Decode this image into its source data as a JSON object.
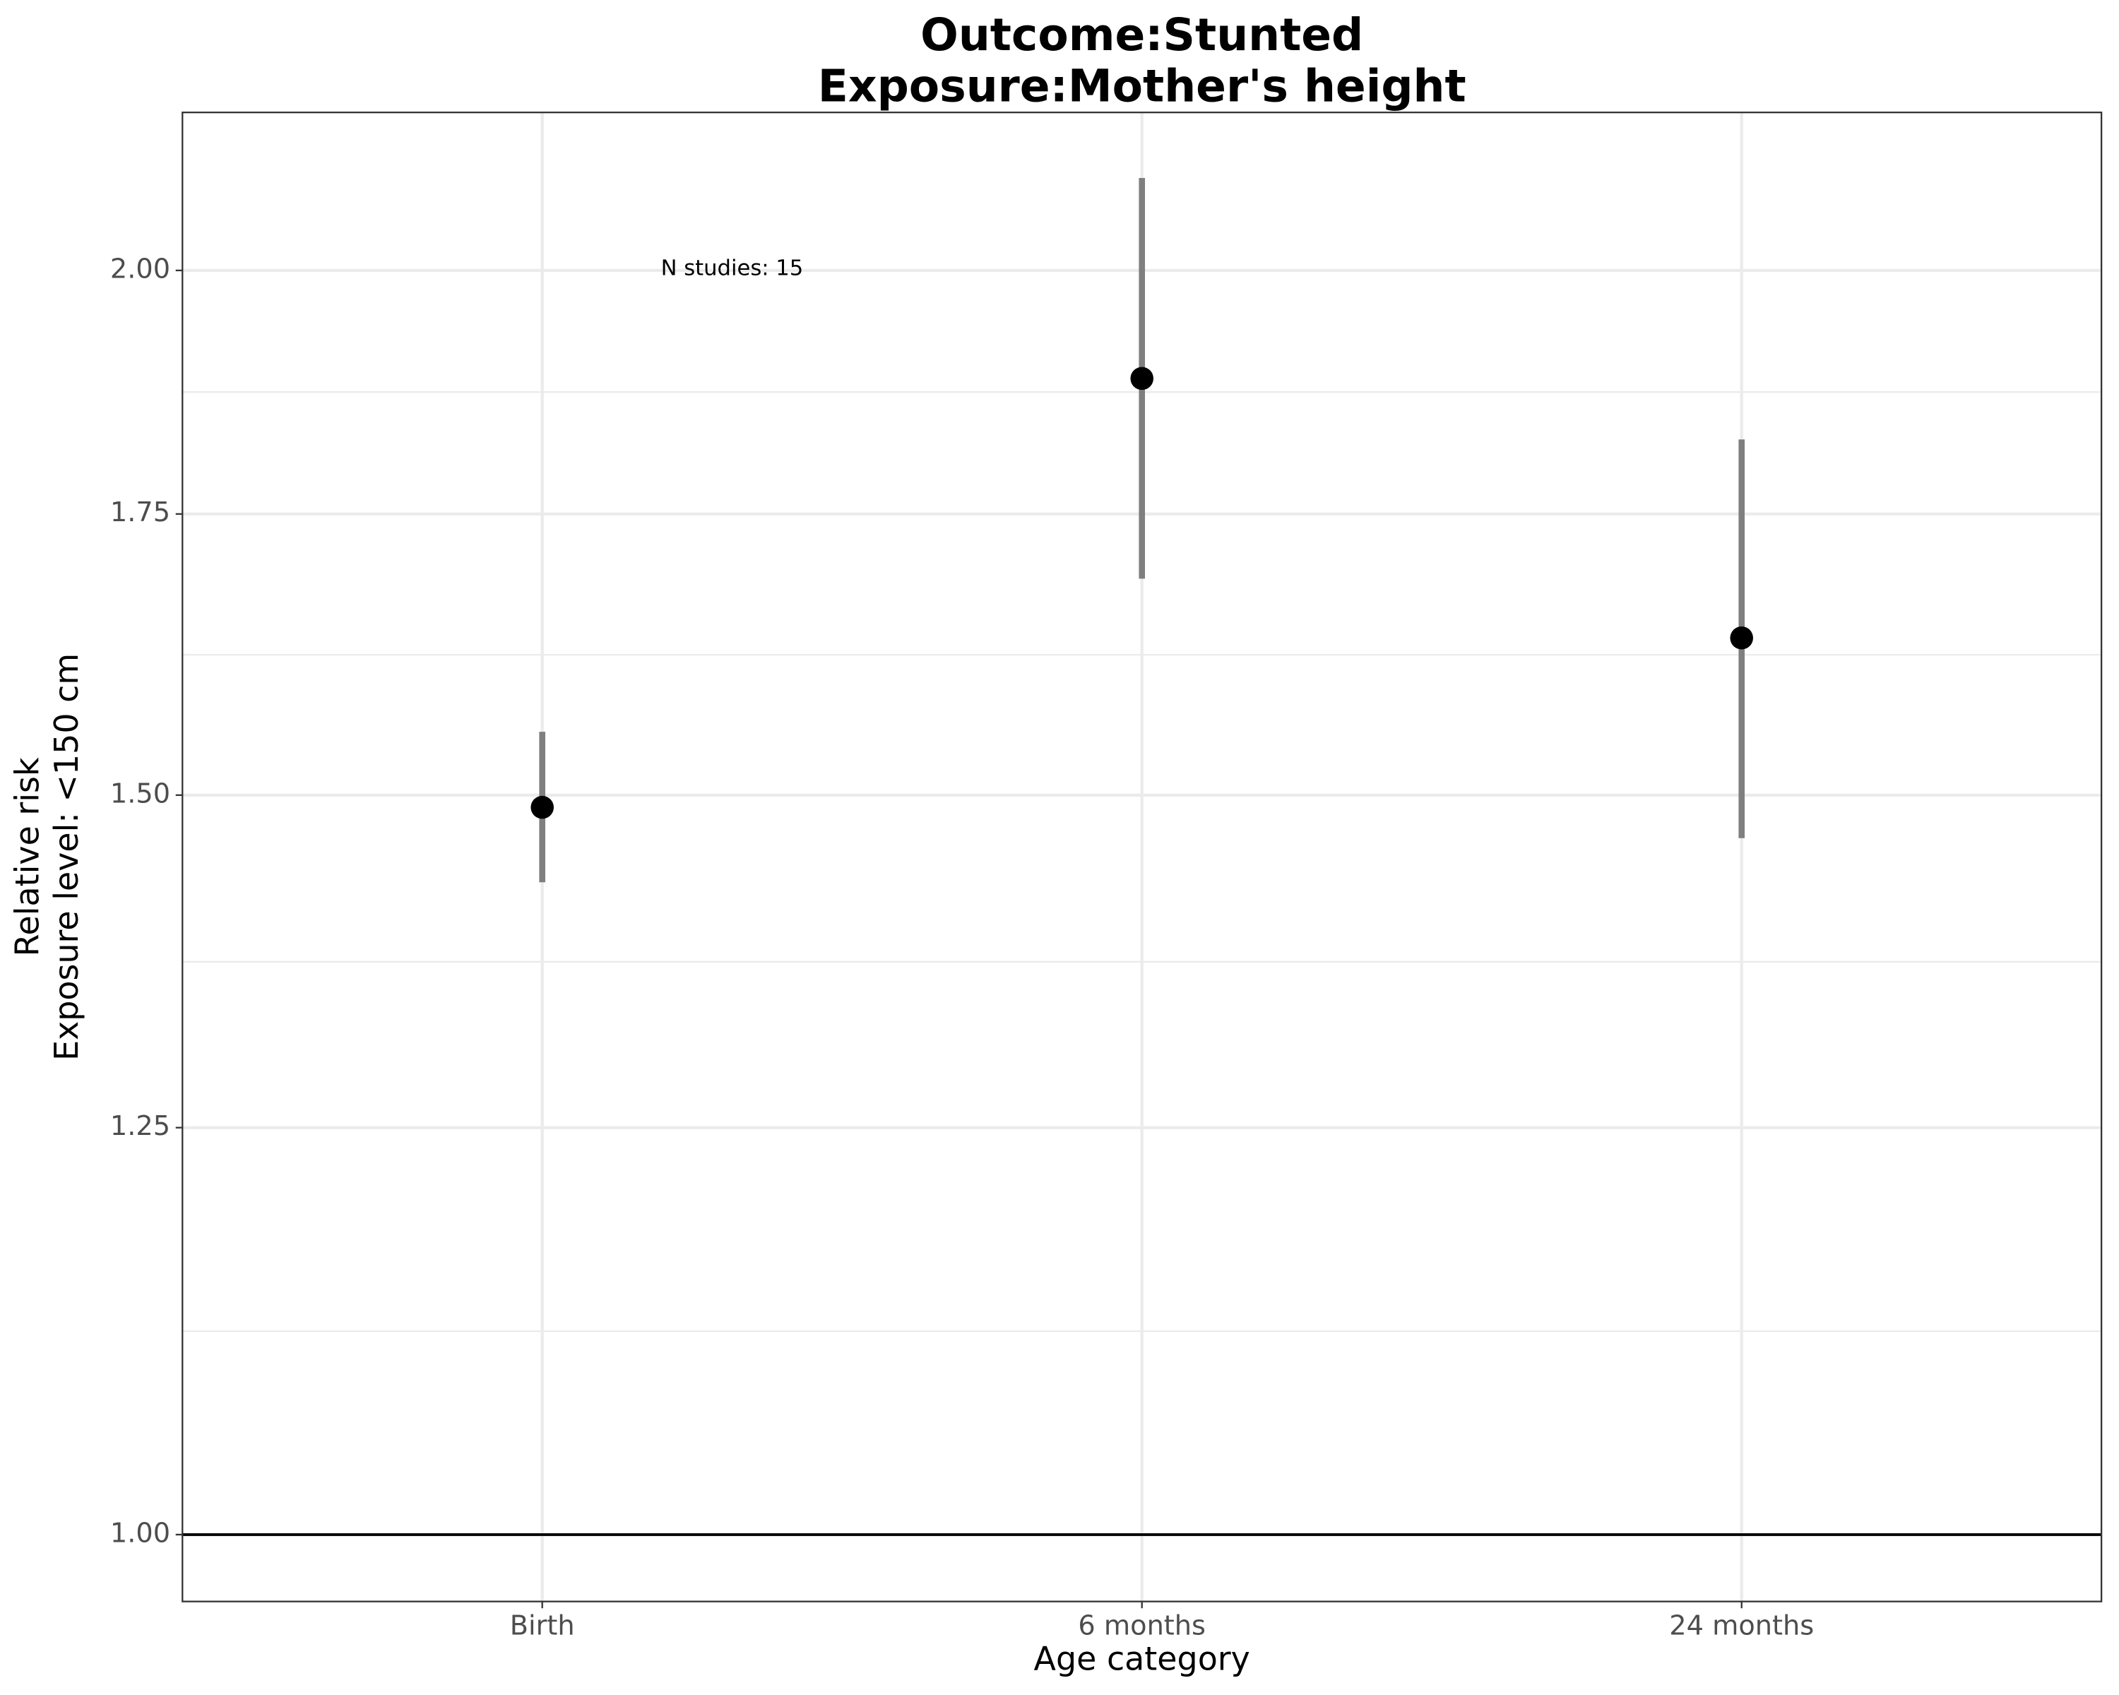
{
  "chart_data": {
    "type": "pointrange",
    "title": [
      "Outcome:Stunted",
      "Exposure:Mother's height"
    ],
    "x_label": "Age category",
    "y_label": [
      "Relative risk",
      "Exposure level: <150 cm"
    ],
    "annotation": "N studies: 15",
    "categories": [
      "Birth",
      "6 months",
      "24 months"
    ],
    "values": [
      1.49,
      1.885,
      1.635
    ],
    "lower": [
      1.43,
      1.689,
      1.465
    ],
    "upper": [
      1.553,
      2.104,
      1.823
    ],
    "point_color": "#000000",
    "bar_color": "#7f7f7f",
    "log_y": true,
    "ylim": [
      0.964,
      2.181
    ],
    "yticks": [
      {
        "value": 1,
        "label": "1.00"
      },
      {
        "value": 1.25,
        "label": "1.25"
      },
      {
        "value": 1.5,
        "label": "1.50"
      },
      {
        "value": 1.75,
        "label": "1.75"
      },
      {
        "value": 2,
        "label": "2.00"
      }
    ],
    "yminor": [
      1.118,
      1.369,
      1.62,
      1.871
    ],
    "reference_line": 1,
    "grid": true
  }
}
